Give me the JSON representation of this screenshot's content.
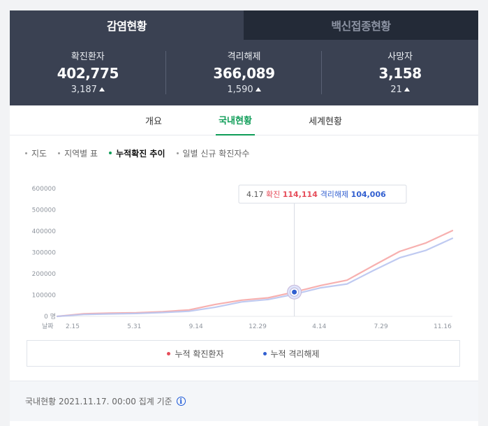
{
  "top_tabs": [
    {
      "label": "감염현황",
      "active": true
    },
    {
      "label": "백신접종현황",
      "active": false
    }
  ],
  "stats": [
    {
      "title": "확진환자",
      "value": "402,775",
      "delta": "3,187"
    },
    {
      "title": "격리해제",
      "value": "366,089",
      "delta": "1,590"
    },
    {
      "title": "사망자",
      "value": "3,158",
      "delta": "21"
    }
  ],
  "sub_tabs": [
    {
      "label": "개요",
      "active": false
    },
    {
      "label": "국내현황",
      "active": true
    },
    {
      "label": "세계현황",
      "active": false
    }
  ],
  "filters": [
    {
      "label": "지도",
      "active": false
    },
    {
      "label": "지역별 표",
      "active": false
    },
    {
      "label": "누적확진 추이",
      "active": true
    },
    {
      "label": "일별 신규 확진자수",
      "active": false
    }
  ],
  "chart_data": {
    "type": "line",
    "y_ticks": [
      "600000",
      "500000",
      "400000",
      "300000",
      "200000",
      "100000",
      "0 명"
    ],
    "y_range": [
      0,
      600000
    ],
    "x_axis_prefix": "날짜",
    "x_ticks": [
      "2.15",
      "5.31",
      "9.14",
      "12.29",
      "4.14",
      "7.29",
      "11.16"
    ],
    "series": [
      {
        "name": "누적 확진환자",
        "color": "#f6a7a6",
        "values": [
          0,
          12000,
          15000,
          17000,
          22000,
          30000,
          56000,
          76000,
          87000,
          114114,
          145000,
          170000,
          238000,
          305000,
          345000,
          402775
        ]
      },
      {
        "name": "누적 격리해제",
        "color": "#b8c4f0",
        "values": [
          0,
          9000,
          11500,
          13500,
          18000,
          24000,
          43000,
          68000,
          79000,
          104006,
          134000,
          152000,
          215000,
          275000,
          310000,
          366089
        ]
      }
    ],
    "grid": false,
    "legend": "bottom",
    "tooltip": {
      "date": "4.17",
      "confirmed_label": "확진",
      "confirmed_value": "114,114",
      "released_label": "격리해제",
      "released_value": "104,006"
    },
    "highlight_index": 9
  },
  "footer": {
    "text": "국내현황 2021.11.17. 00:00 집계 기준",
    "info_icon": "info-icon"
  },
  "colors": {
    "accent": "#0f9d58",
    "confirmed": "#e64d5a",
    "released": "#315fd0",
    "header_bg": "#3a4152"
  }
}
